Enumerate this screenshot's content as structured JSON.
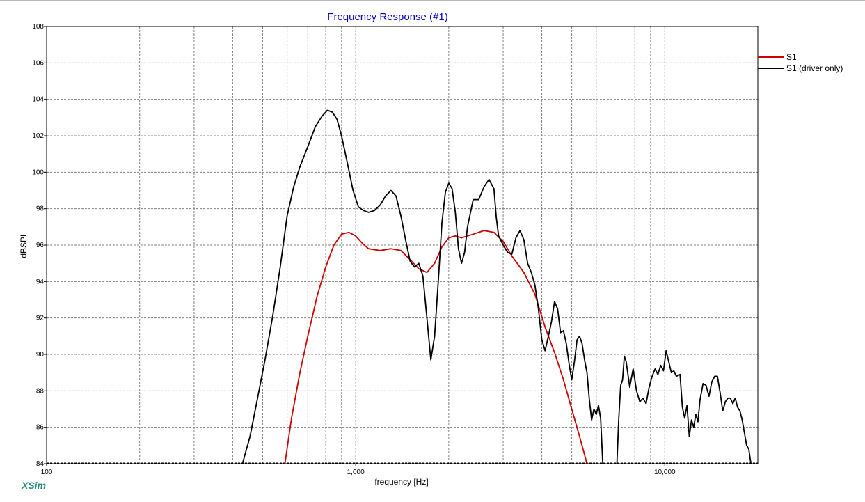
{
  "app": {
    "brand": "XSim"
  },
  "chart_data": {
    "type": "line",
    "title": "Frequency Response (#1)",
    "xlabel": "frequency [Hz]",
    "ylabel": "dBSPL",
    "x_scale": "log",
    "xlim": [
      100,
      20000
    ],
    "ylim": [
      84,
      108
    ],
    "x_ticks": [
      {
        "value": 100,
        "label": "100"
      },
      {
        "value": 1000,
        "label": "1,000"
      },
      {
        "value": 10000,
        "label": "10,000"
      }
    ],
    "y_ticks": [
      {
        "value": 84,
        "label": "84"
      },
      {
        "value": 86,
        "label": "86"
      },
      {
        "value": 88,
        "label": "88"
      },
      {
        "value": 90,
        "label": "90"
      },
      {
        "value": 92,
        "label": "92"
      },
      {
        "value": 94,
        "label": "94"
      },
      {
        "value": 96,
        "label": "96"
      },
      {
        "value": 98,
        "label": "98"
      },
      {
        "value": 100,
        "label": "100"
      },
      {
        "value": 102,
        "label": "102"
      },
      {
        "value": 104,
        "label": "104"
      },
      {
        "value": 106,
        "label": "106"
      },
      {
        "value": 108,
        "label": "108"
      }
    ],
    "grid": true,
    "legend": "top-right",
    "colors": {
      "title": "#0000cc",
      "grid": "#808080",
      "axis": "#000000"
    },
    "series": [
      {
        "name": "S1",
        "color": "#cc0000",
        "points": [
          [
            590,
            84.0
          ],
          [
            620,
            86.5
          ],
          [
            660,
            89.0
          ],
          [
            700,
            91.0
          ],
          [
            750,
            93.2
          ],
          [
            800,
            94.8
          ],
          [
            850,
            96.0
          ],
          [
            900,
            96.6
          ],
          [
            950,
            96.7
          ],
          [
            1000,
            96.5
          ],
          [
            1050,
            96.1
          ],
          [
            1100,
            95.8
          ],
          [
            1200,
            95.7
          ],
          [
            1300,
            95.8
          ],
          [
            1400,
            95.7
          ],
          [
            1500,
            95.2
          ],
          [
            1600,
            94.7
          ],
          [
            1700,
            94.5
          ],
          [
            1800,
            95.0
          ],
          [
            1900,
            95.9
          ],
          [
            2000,
            96.4
          ],
          [
            2100,
            96.5
          ],
          [
            2200,
            96.4
          ],
          [
            2400,
            96.6
          ],
          [
            2600,
            96.8
          ],
          [
            2800,
            96.7
          ],
          [
            3000,
            96.2
          ],
          [
            3200,
            95.4
          ],
          [
            3500,
            94.5
          ],
          [
            3800,
            93.3
          ],
          [
            4100,
            91.5
          ],
          [
            4400,
            90.1
          ],
          [
            4700,
            88.6
          ],
          [
            5000,
            87.0
          ],
          [
            5300,
            85.5
          ],
          [
            5600,
            84.0
          ]
        ]
      },
      {
        "name": "S1 (driver only)",
        "color": "#000000",
        "points": [
          [
            430,
            84.0
          ],
          [
            455,
            85.5
          ],
          [
            480,
            87.5
          ],
          [
            510,
            89.8
          ],
          [
            540,
            92.2
          ],
          [
            570,
            94.8
          ],
          [
            600,
            97.6
          ],
          [
            630,
            99.2
          ],
          [
            660,
            100.3
          ],
          [
            700,
            101.4
          ],
          [
            740,
            102.5
          ],
          [
            780,
            103.1
          ],
          [
            810,
            103.4
          ],
          [
            840,
            103.3
          ],
          [
            870,
            102.9
          ],
          [
            900,
            102.0
          ],
          [
            940,
            100.5
          ],
          [
            980,
            99.0
          ],
          [
            1020,
            98.1
          ],
          [
            1060,
            97.9
          ],
          [
            1100,
            97.8
          ],
          [
            1150,
            97.9
          ],
          [
            1200,
            98.2
          ],
          [
            1250,
            98.7
          ],
          [
            1300,
            99.0
          ],
          [
            1350,
            98.7
          ],
          [
            1400,
            97.6
          ],
          [
            1450,
            96.3
          ],
          [
            1500,
            95.1
          ],
          [
            1550,
            94.8
          ],
          [
            1600,
            95.0
          ],
          [
            1650,
            94.3
          ],
          [
            1700,
            92.0
          ],
          [
            1750,
            89.7
          ],
          [
            1800,
            91.0
          ],
          [
            1850,
            94.0
          ],
          [
            1900,
            97.2
          ],
          [
            1950,
            98.9
          ],
          [
            2000,
            99.4
          ],
          [
            2050,
            99.1
          ],
          [
            2100,
            97.8
          ],
          [
            2150,
            95.8
          ],
          [
            2200,
            95.0
          ],
          [
            2250,
            95.6
          ],
          [
            2300,
            97.0
          ],
          [
            2400,
            98.5
          ],
          [
            2500,
            98.5
          ],
          [
            2600,
            99.2
          ],
          [
            2700,
            99.6
          ],
          [
            2800,
            99.1
          ],
          [
            2850,
            97.5
          ],
          [
            2900,
            96.5
          ],
          [
            3000,
            96.0
          ],
          [
            3100,
            95.6
          ],
          [
            3200,
            95.5
          ],
          [
            3300,
            96.4
          ],
          [
            3400,
            96.8
          ],
          [
            3500,
            96.3
          ],
          [
            3600,
            95.0
          ],
          [
            3700,
            94.5
          ],
          [
            3800,
            93.8
          ],
          [
            3900,
            92.5
          ],
          [
            4000,
            90.8
          ],
          [
            4100,
            90.2
          ],
          [
            4200,
            91.0
          ],
          [
            4300,
            91.8
          ],
          [
            4400,
            92.9
          ],
          [
            4500,
            92.5
          ],
          [
            4600,
            91.2
          ],
          [
            4700,
            91.3
          ],
          [
            4800,
            90.6
          ],
          [
            4900,
            89.5
          ],
          [
            5000,
            88.6
          ],
          [
            5100,
            89.6
          ],
          [
            5200,
            90.8
          ],
          [
            5300,
            91.0
          ],
          [
            5400,
            90.6
          ],
          [
            5500,
            89.7
          ],
          [
            5600,
            89.0
          ],
          [
            5700,
            87.5
          ],
          [
            5800,
            86.4
          ],
          [
            5900,
            87.0
          ],
          [
            6000,
            86.7
          ],
          [
            6100,
            87.2
          ],
          [
            6200,
            86.5
          ],
          [
            6300,
            84.0
          ]
        ]
      },
      {
        "name": "S1 (driver only)",
        "color": "#000000",
        "points": [
          [
            7000,
            84.0
          ],
          [
            7100,
            86.5
          ],
          [
            7200,
            88.3
          ],
          [
            7300,
            88.6
          ],
          [
            7400,
            89.9
          ],
          [
            7500,
            89.6
          ],
          [
            7700,
            88.2
          ],
          [
            7900,
            89.2
          ],
          [
            8100,
            88.0
          ],
          [
            8300,
            87.4
          ],
          [
            8500,
            87.6
          ],
          [
            8700,
            87.3
          ],
          [
            8900,
            88.2
          ],
          [
            9100,
            88.8
          ],
          [
            9300,
            89.2
          ],
          [
            9500,
            88.9
          ],
          [
            9700,
            89.4
          ],
          [
            9900,
            89.1
          ],
          [
            10100,
            90.2
          ],
          [
            10300,
            89.6
          ],
          [
            10500,
            89.0
          ],
          [
            10700,
            89.1
          ],
          [
            10900,
            88.8
          ],
          [
            11200,
            88.9
          ],
          [
            11400,
            87.1
          ],
          [
            11600,
            86.5
          ],
          [
            11800,
            87.2
          ],
          [
            12000,
            85.5
          ],
          [
            12200,
            86.4
          ],
          [
            12400,
            86.0
          ],
          [
            12600,
            86.7
          ],
          [
            12800,
            86.3
          ],
          [
            13000,
            87.5
          ],
          [
            13300,
            88.4
          ],
          [
            13600,
            88.3
          ],
          [
            13900,
            87.7
          ],
          [
            14200,
            88.5
          ],
          [
            14500,
            88.8
          ],
          [
            14800,
            88.8
          ],
          [
            15100,
            87.9
          ],
          [
            15400,
            86.9
          ],
          [
            15700,
            87.4
          ],
          [
            16000,
            87.6
          ],
          [
            16300,
            87.6
          ],
          [
            16600,
            87.3
          ],
          [
            16900,
            87.6
          ],
          [
            17200,
            87.1
          ],
          [
            17500,
            86.9
          ],
          [
            17800,
            86.4
          ],
          [
            18100,
            85.7
          ],
          [
            18400,
            85.0
          ],
          [
            18700,
            84.8
          ],
          [
            19000,
            84.0
          ]
        ]
      }
    ],
    "legend_entries": [
      {
        "label": "S1",
        "color": "#cc0000"
      },
      {
        "label": "S1 (driver only)",
        "color": "#000000"
      }
    ]
  }
}
